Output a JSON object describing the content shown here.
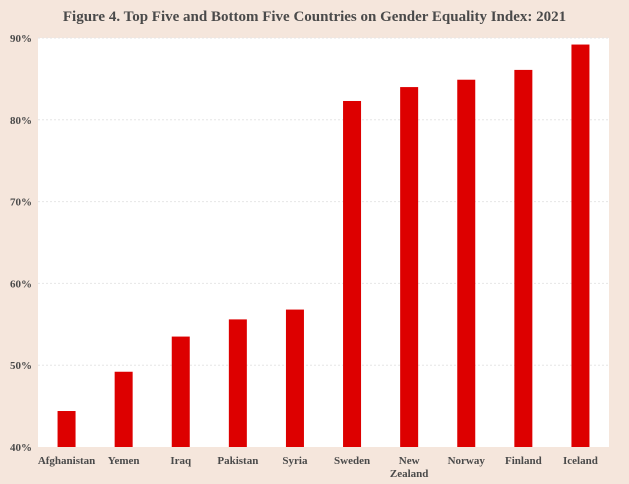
{
  "colors": {
    "background": "#f5e6dc",
    "plot_background": "#ffffff",
    "bar": "#dd0000",
    "grid": "#e6e6e6",
    "text": "#4a4a4a"
  },
  "chart_data": {
    "type": "bar",
    "title": "Figure 4. Top Five and Bottom Five Countries on Gender Equality Index: 2021",
    "xlabel": "",
    "ylabel": "",
    "categories": [
      "Afghanistan",
      "Yemen",
      "Iraq",
      "Pakistan",
      "Syria",
      "Sweden",
      "New Zealand",
      "Norway",
      "Finland",
      "Iceland"
    ],
    "category_lines": [
      [
        "Afghanistan"
      ],
      [
        "Yemen"
      ],
      [
        "Iraq"
      ],
      [
        "Pakistan"
      ],
      [
        "Syria"
      ],
      [
        "Sweden"
      ],
      [
        "New",
        "Zealand"
      ],
      [
        "Norway"
      ],
      [
        "Finland"
      ],
      [
        "Iceland"
      ]
    ],
    "values": [
      44.4,
      49.2,
      53.5,
      55.6,
      56.8,
      82.3,
      84.0,
      84.9,
      86.1,
      89.2
    ],
    "ylim": [
      40,
      90
    ],
    "yticks": [
      40,
      50,
      60,
      70,
      80,
      90
    ],
    "ytick_labels": [
      "40%",
      "50%",
      "60%",
      "70%",
      "80%",
      "90%"
    ],
    "grid": true,
    "legend": "none"
  }
}
